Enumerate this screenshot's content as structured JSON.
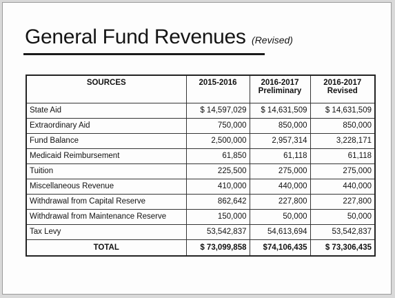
{
  "title": {
    "main": "General Fund Revenues",
    "sub": "(Revised)"
  },
  "table": {
    "headers": [
      "SOURCES",
      "2015-2016",
      "2016-2017\nPreliminary",
      "2016-2017\nRevised"
    ],
    "header_lines": [
      [
        "SOURCES"
      ],
      [
        "2015-2016"
      ],
      [
        "2016-2017",
        "Preliminary"
      ],
      [
        "2016-2017",
        "Revised"
      ]
    ],
    "rows": [
      [
        "State Aid",
        "$ 14,597,029",
        "$ 14,631,509",
        "$ 14,631,509"
      ],
      [
        "Extraordinary Aid",
        "750,000",
        "850,000",
        "850,000"
      ],
      [
        "Fund Balance",
        "2,500,000",
        "2,957,314",
        "3,228,171"
      ],
      [
        "Medicaid Reimbursement",
        "61,850",
        "61,118",
        "61,118"
      ],
      [
        "Tuition",
        "225,500",
        "275,000",
        "275,000"
      ],
      [
        "Miscellaneous Revenue",
        "410,000",
        "440,000",
        "440,000"
      ],
      [
        "Withdrawal from Capital Reserve",
        "862,642",
        "227,800",
        "227,800"
      ],
      [
        "Withdrawal from Maintenance Reserve",
        "150,000",
        "50,000",
        "50,000"
      ],
      [
        "Tax Levy",
        "53,542,837",
        "54,613,694",
        "53,542,837"
      ]
    ],
    "total": [
      "TOTAL",
      "$ 73,099,858",
      "$74,106,435",
      "$ 73,306,435"
    ]
  }
}
